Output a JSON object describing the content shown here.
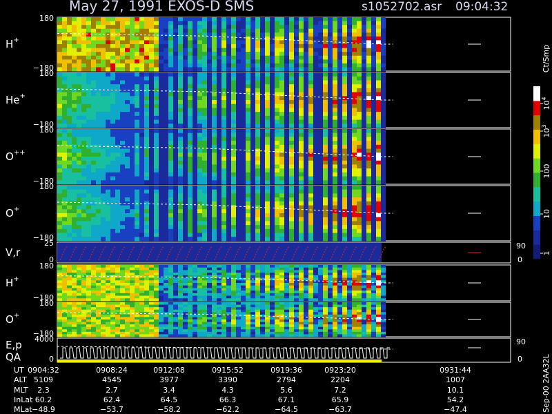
{
  "header": {
    "title": "May 27, 1991   EXOS-D SMS",
    "file": "s1052702.asr",
    "time": "09:04:32"
  },
  "panels": [
    {
      "label": "H",
      "sup": "+",
      "ytop": "180",
      "ybottom": "−180"
    },
    {
      "label": "He",
      "sup": "+",
      "ytop": "180",
      "ybottom": "−180"
    },
    {
      "label": "O",
      "sup": "++",
      "ytop": "180",
      "ybottom": "−180"
    },
    {
      "label": "O",
      "sup": "+",
      "ytop": "180",
      "ybottom": "−180"
    },
    {
      "label": "V,r",
      "ytop": "25",
      "ybottom": "0",
      "rtop": "90",
      "rbottom": "0"
    },
    {
      "label": "H",
      "sup": "+",
      "ytop": "180",
      "ybottom": "−180"
    },
    {
      "label": "O",
      "sup": "+",
      "ytop": "180",
      "ybottom": "−180"
    },
    {
      "label": "E,p",
      "label2": "QA",
      "ytop": "4000",
      "ybottom": "0",
      "rtop": "90",
      "rbottom": "0"
    }
  ],
  "colorbar": {
    "title": "Ct/Smp",
    "ticks": [
      {
        "base": "10",
        "exp": "4"
      },
      {
        "base": "10",
        "exp": "3"
      },
      {
        "base": "100"
      },
      {
        "base": "10"
      },
      {
        "base": "1"
      }
    ]
  },
  "ephemeris": {
    "rows": [
      {
        "label": "UT",
        "values": [
          "0904:32",
          "0908:24",
          "0912:08",
          "0915:52",
          "0919:36",
          "0923:20",
          "0931:44"
        ]
      },
      {
        "label": "ALT",
        "values": [
          "5109",
          "4545",
          "3977",
          "3390",
          "2794",
          "2204",
          "1007"
        ]
      },
      {
        "label": "MLT",
        "values": [
          "2.3",
          "2.7",
          "3.4",
          "4.3",
          "5.6",
          "7.2",
          "10.1"
        ]
      },
      {
        "label": "InLat",
        "values": [
          "60.2",
          "62.4",
          "64.5",
          "66.3",
          "67.1",
          "65.9",
          "54.2"
        ]
      },
      {
        "label": "MLat",
        "values": [
          "−48.9",
          "−53.7",
          "−58.2",
          "−62.2",
          "−64.5",
          "−63.7",
          "−47.4"
        ]
      }
    ]
  },
  "footer": "Sep-00  2AA32L"
}
